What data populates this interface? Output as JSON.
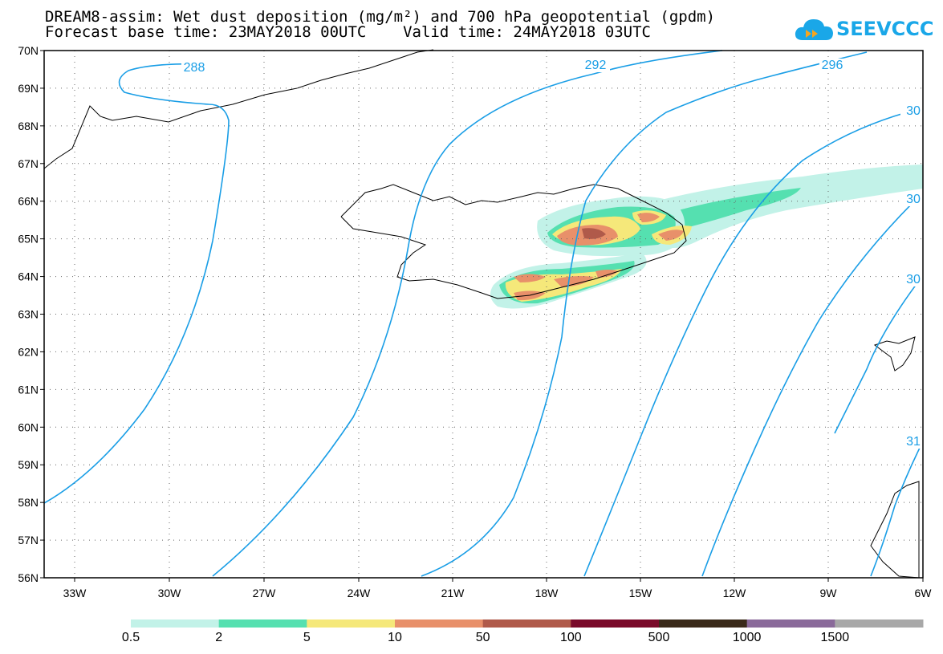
{
  "header": {
    "title_line1": "DREAM8-assim: Wet dust deposition (mg/m²) and 700 hPa geopotential (gpdm)",
    "title_line2": "Forecast base time: 23MAY2018 00UTC    Valid time: 24MAY2018 03UTC"
  },
  "logo": {
    "text": "SEEVCCC",
    "icon": "cloud-forward-icon"
  },
  "colors": {
    "contour": "#1a9ee6",
    "dust": [
      "#c2f2e8",
      "#55e0b0",
      "#f5e87a",
      "#e8906a",
      "#b05a4a",
      "#7a0a2a",
      "#3a2a1a",
      "#8a6a9a",
      "#a8a8a8"
    ]
  },
  "map": {
    "lat_labels": [
      "70N",
      "69N",
      "68N",
      "67N",
      "66N",
      "65N",
      "64N",
      "63N",
      "62N",
      "61N",
      "60N",
      "59N",
      "58N",
      "57N",
      "56N"
    ],
    "lon_labels": [
      "33W",
      "30W",
      "27W",
      "24W",
      "21W",
      "18W",
      "15W",
      "12W",
      "9W",
      "6W"
    ],
    "contours": [
      {
        "label": "288"
      },
      {
        "label": "292"
      },
      {
        "label": "296"
      },
      {
        "label": "30"
      },
      {
        "label": "30"
      },
      {
        "label": "30"
      },
      {
        "label": "31"
      }
    ]
  },
  "colorbar": {
    "labels": [
      "0.5",
      "2",
      "5",
      "10",
      "50",
      "100",
      "500",
      "1000",
      "1500"
    ]
  }
}
